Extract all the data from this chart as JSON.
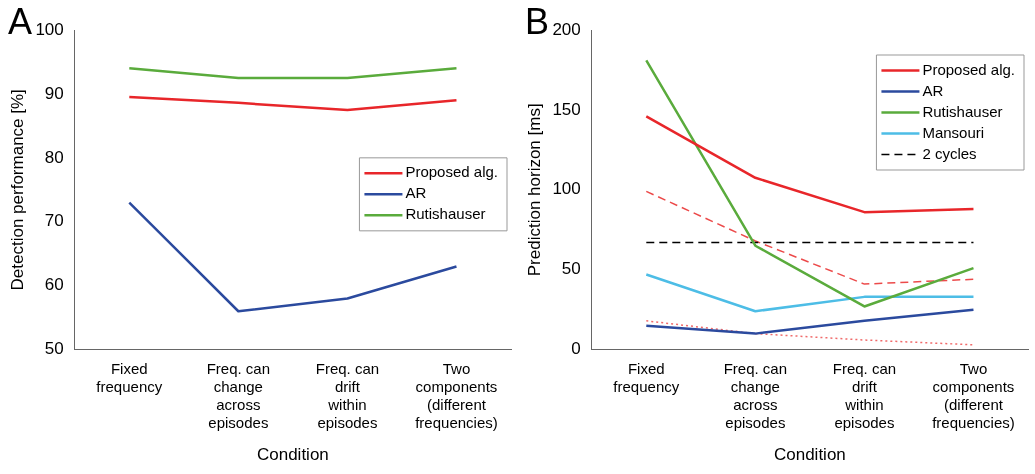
{
  "chart_data": [
    {
      "type": "line",
      "title": "A",
      "xlabel": "Condition",
      "ylabel": "Detection performance [%]",
      "categories": [
        "Fixed frequency",
        "Freq. can change across episodes",
        "Freq. can drift within episodes",
        "Two components (different frequencies)"
      ],
      "series": [
        {
          "name": "Proposed alg.",
          "color": "#e8262a",
          "values": [
            89.5,
            88.6,
            87.5,
            89
          ]
        },
        {
          "name": "AR",
          "color": "#2b4a9e",
          "values": [
            73,
            56,
            58,
            63
          ]
        },
        {
          "name": "Rutishauser",
          "color": "#5aab3c",
          "values": [
            94,
            92.5,
            92.5,
            94
          ]
        }
      ],
      "ylim": [
        50,
        100
      ],
      "yticks": [
        50,
        60,
        70,
        80,
        90,
        100
      ],
      "legend": "right",
      "marker": "none",
      "line_style": "solid"
    },
    {
      "type": "line",
      "title": "B",
      "xlabel": "Condition",
      "ylabel": "Prediction horizon [ms]",
      "categories": [
        "Fixed frequency",
        "Freq. can change across episodes",
        "Freq. can drift within episodes",
        "Two components (different frequencies)"
      ],
      "series": [
        {
          "name": "Proposed alg.",
          "color": "#e8262a",
          "values": [
            146,
            107.5,
            86,
            88
          ]
        },
        {
          "name": "AR",
          "color": "#2b4a9e",
          "values": [
            15,
            10,
            18,
            25
          ]
        },
        {
          "name": "Rutishauser",
          "color": "#5aab3c",
          "values": [
            181,
            65,
            27,
            51
          ]
        },
        {
          "name": "Mansouri",
          "color": "#4dbde6",
          "values": [
            47,
            24,
            33,
            33
          ]
        },
        {
          "name": "2 cycles",
          "color": "#000000",
          "values": [
            67,
            67,
            67,
            67
          ],
          "line_style": "dashed"
        },
        {
          "color": "#ec4a4a",
          "values": [
            99,
            68,
            41,
            44
          ],
          "line_style": "dashed"
        },
        {
          "color": "#f06a6a",
          "values": [
            18,
            10,
            6,
            3
          ],
          "line_style": "dotted"
        }
      ],
      "ylim": [
        0,
        200
      ],
      "yticks": [
        0,
        50,
        100,
        150,
        200
      ],
      "legend": "top right",
      "marker": "none",
      "line_style": "solid"
    }
  ]
}
